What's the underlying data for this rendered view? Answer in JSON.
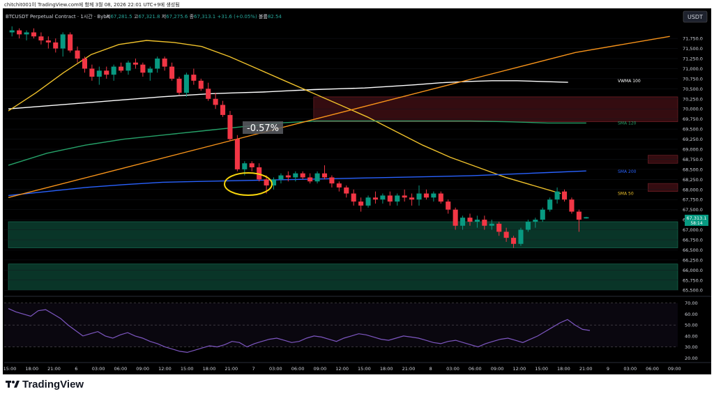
{
  "header": {
    "caption": "chitchit001이 TradingView.com에 함께 3월 08, 2026 22:01 UTC+9에 생성됨"
  },
  "legend": {
    "symbol": "BTCUSDT Perpetual Contract · 1시간 · Bybit",
    "o_label": "시",
    "o": "67,281.5",
    "h_label": "고",
    "h": "67,321.8",
    "l_label": "저",
    "l": "67,275.6",
    "c_label": "종",
    "c": "67,313.1",
    "change": "+31.6 (+0.05%)",
    "vol_label": "볼륨",
    "vol": "82.54"
  },
  "currency": "USDT",
  "annotation_pct": "-0.57%",
  "brand": "TradingView",
  "colors": {
    "background": "#000000",
    "up": "#089981",
    "down": "#f23645",
    "vwma": "#ffffff",
    "sma50": "#f0c22b",
    "sma120": "#26a269",
    "sma200": "#2962ff",
    "trendline": "#f7931a",
    "rsi": "#7e57c2",
    "zone_green": "#0b3b2d",
    "zone_red": "#3a0e12"
  },
  "chart_data": {
    "type": "candlestick",
    "price_axis": {
      "ylim": [
        65400,
        72150
      ],
      "ticks": [
        "71,750.0",
        "71,500.0",
        "71,250.0",
        "71,000.0",
        "70,750.0",
        "70,500.0",
        "70,250.0",
        "70,000.0",
        "69,750.0",
        "69,500.0",
        "69,250.0",
        "69,000.0",
        "68,750.0",
        "68,500.0",
        "68,250.0",
        "68,000.0",
        "67,750.0",
        "67,500.0",
        "67,250.0",
        "67,000.0",
        "66,750.0",
        "66,500.0",
        "66,250.0",
        "66,000.0",
        "65,750.0",
        "65,500.0"
      ],
      "last_price": "67,313.1",
      "countdown": "58:14"
    },
    "time_axis": {
      "labels": [
        "15:00",
        "18:00",
        "21:00",
        "6",
        "03:00",
        "06:00",
        "09:00",
        "12:00",
        "15:00",
        "18:00",
        "21:00",
        "7",
        "03:00",
        "06:00",
        "09:00",
        "12:00",
        "15:00",
        "18:00",
        "21:00",
        "8",
        "03:00",
        "06:00",
        "09:00",
        "12:00",
        "15:00",
        "18:00",
        "21:00",
        "9",
        "03:00",
        "06:00",
        "09:00"
      ]
    },
    "candles": [
      [
        71900,
        72050,
        71800,
        71950
      ],
      [
        71950,
        72000,
        71750,
        71850
      ],
      [
        71850,
        71950,
        71700,
        71900
      ],
      [
        71900,
        72000,
        71750,
        71800
      ],
      [
        71800,
        71900,
        71600,
        71700
      ],
      [
        71700,
        71800,
        71500,
        71650
      ],
      [
        71650,
        71750,
        71400,
        71500
      ],
      [
        71500,
        71900,
        71300,
        71850
      ],
      [
        71850,
        71900,
        71400,
        71450
      ],
      [
        71450,
        71550,
        71150,
        71250
      ],
      [
        71250,
        71300,
        70900,
        71000
      ],
      [
        71000,
        71100,
        70700,
        70800
      ],
      [
        70800,
        71050,
        70600,
        70950
      ],
      [
        70950,
        71050,
        70750,
        70850
      ],
      [
        70850,
        71100,
        70700,
        71050
      ],
      [
        71050,
        71150,
        70900,
        70950
      ],
      [
        70950,
        71200,
        70850,
        71150
      ],
      [
        71150,
        71250,
        71000,
        71100
      ],
      [
        71100,
        71150,
        70800,
        70900
      ],
      [
        70900,
        71050,
        70700,
        71000
      ],
      [
        71000,
        71300,
        70900,
        71250
      ],
      [
        71250,
        71300,
        70950,
        71050
      ],
      [
        71050,
        71150,
        70700,
        70750
      ],
      [
        70750,
        70800,
        70350,
        70400
      ],
      [
        70400,
        70900,
        70300,
        70850
      ],
      [
        70850,
        71000,
        70600,
        70700
      ],
      [
        70700,
        70750,
        70450,
        70500
      ],
      [
        70500,
        70650,
        70200,
        70250
      ],
      [
        70250,
        70400,
        70000,
        70100
      ],
      [
        70100,
        70200,
        69800,
        69850
      ],
      [
        69850,
        69950,
        69200,
        69250
      ],
      [
        69250,
        69350,
        68450,
        68500
      ],
      [
        68500,
        68700,
        68350,
        68650
      ],
      [
        68650,
        68700,
        68450,
        68550
      ],
      [
        68550,
        68650,
        68200,
        68250
      ],
      [
        68250,
        68350,
        67900,
        68100
      ],
      [
        68100,
        68300,
        68000,
        68250
      ],
      [
        68250,
        68400,
        68150,
        68350
      ],
      [
        68350,
        68450,
        68200,
        68300
      ],
      [
        68300,
        68450,
        68200,
        68400
      ],
      [
        68400,
        68450,
        68250,
        68300
      ],
      [
        68300,
        68400,
        68150,
        68200
      ],
      [
        68200,
        68450,
        68150,
        68400
      ],
      [
        68400,
        68600,
        68250,
        68300
      ],
      [
        68300,
        68350,
        68050,
        68150
      ],
      [
        68150,
        68200,
        67950,
        68050
      ],
      [
        68050,
        68100,
        67800,
        67900
      ],
      [
        67900,
        68000,
        67600,
        67700
      ],
      [
        67700,
        67800,
        67450,
        67600
      ],
      [
        67600,
        67850,
        67550,
        67800
      ],
      [
        67800,
        67950,
        67650,
        67750
      ],
      [
        67750,
        67900,
        67650,
        67850
      ],
      [
        67850,
        67950,
        67600,
        67700
      ],
      [
        67700,
        67900,
        67600,
        67850
      ],
      [
        67850,
        68000,
        67700,
        67800
      ],
      [
        67800,
        67900,
        67600,
        67750
      ],
      [
        67750,
        68100,
        67600,
        67900
      ],
      [
        67900,
        68000,
        67750,
        67800
      ],
      [
        67800,
        67950,
        67700,
        67900
      ],
      [
        67900,
        67950,
        67650,
        67700
      ],
      [
        67700,
        67750,
        67400,
        67500
      ],
      [
        67500,
        67550,
        67000,
        67100
      ],
      [
        67100,
        67350,
        67000,
        67300
      ],
      [
        67300,
        67400,
        67100,
        67200
      ],
      [
        67200,
        67350,
        67050,
        67250
      ],
      [
        67250,
        67350,
        67000,
        67100
      ],
      [
        67100,
        67250,
        67000,
        67150
      ],
      [
        67150,
        67200,
        66850,
        66950
      ],
      [
        66950,
        67050,
        66700,
        66800
      ],
      [
        66800,
        66850,
        66550,
        66650
      ],
      [
        66650,
        67050,
        66600,
        67000
      ],
      [
        67000,
        67250,
        66950,
        67200
      ],
      [
        67200,
        67300,
        67050,
        67250
      ],
      [
        67250,
        67550,
        67200,
        67500
      ],
      [
        67500,
        67800,
        67450,
        67750
      ],
      [
        67750,
        68050,
        67650,
        67950
      ],
      [
        67950,
        68000,
        67700,
        67750
      ],
      [
        67750,
        67800,
        67400,
        67450
      ],
      [
        67450,
        67500,
        66950,
        67250
      ],
      [
        67281.5,
        67321.8,
        67275.6,
        67313.1
      ]
    ],
    "series": [
      {
        "name": "VWMA 100",
        "y": [
          70000,
          70050,
          70100,
          70150,
          70200,
          70250,
          70300,
          70340,
          70380,
          70400,
          70420,
          70450,
          70480,
          70500,
          70520,
          70560,
          70600,
          70650,
          70680,
          70700,
          70700,
          70680,
          70660
        ],
        "x_start": 0,
        "x_step": 3.5
      },
      {
        "name": "SMA 50",
        "y": [
          69950,
          70400,
          70900,
          71350,
          71600,
          71700,
          71650,
          71550,
          71300,
          71000,
          70700,
          70400,
          70100,
          69800,
          69450,
          69100,
          68800,
          68550,
          68300,
          68100,
          67900
        ],
        "x_start": 0,
        "x_step": 3.8
      },
      {
        "name": "SMA 120",
        "y": [
          68600,
          68900,
          69100,
          69250,
          69350,
          69450,
          69550,
          69650,
          69700,
          69700,
          69700,
          69700,
          69700,
          69680,
          69650,
          69650
        ],
        "x_start": 0,
        "x_step": 5.3
      },
      {
        "name": "SMA 200",
        "y": [
          67850,
          67950,
          68050,
          68120,
          68180,
          68200,
          68220,
          68240,
          68260,
          68280,
          68300,
          68320,
          68340,
          68380,
          68420,
          68460
        ],
        "x_start": 0,
        "x_step": 5.3
      },
      {
        "name": "",
        "y": [
          67800,
          68400,
          69000,
          69600,
          70200,
          70800,
          71400,
          71800
        ],
        "x_start": 0,
        "x_step": 13
      }
    ],
    "series_labels": [
      "VWMA 100",
      "SMA 120",
      "SMA 200",
      "SMA 50"
    ],
    "zones": [
      {
        "kind": "red",
        "from": 69680,
        "to": 70300,
        "x0": 42,
        "x1": 101
      },
      {
        "kind": "red",
        "from": 68650,
        "to": 68850,
        "x0": 88,
        "x1": 101
      },
      {
        "kind": "red",
        "from": 67950,
        "to": 68150,
        "x0": 88,
        "x1": 101
      },
      {
        "kind": "green",
        "from": 66550,
        "to": 67200,
        "x0": 0,
        "x1": 101
      },
      {
        "kind": "green",
        "from": 65500,
        "to": 66150,
        "x0": 0,
        "x1": 101
      }
    ],
    "rsi": {
      "ticks": [
        "70.00",
        "60.00",
        "50.00",
        "40.00",
        "30.00",
        "20.00"
      ],
      "ylim": [
        17,
        73
      ],
      "levels": [
        70,
        50,
        30
      ],
      "values": [
        65,
        62,
        60,
        58,
        63,
        64,
        60,
        56,
        50,
        45,
        40,
        42,
        44,
        40,
        38,
        41,
        43,
        40,
        38,
        35,
        33,
        30,
        28,
        26,
        25,
        27,
        29,
        31,
        30,
        32,
        35,
        34,
        30,
        33,
        35,
        37,
        38,
        36,
        34,
        35,
        38,
        40,
        39,
        37,
        35,
        38,
        40,
        42,
        41,
        39,
        37,
        36,
        38,
        40,
        39,
        38,
        36,
        34,
        33,
        35,
        36,
        34,
        32,
        30,
        33,
        35,
        37,
        38,
        36,
        34,
        37,
        40,
        44,
        48,
        52,
        55,
        50,
        46,
        45
      ]
    }
  }
}
